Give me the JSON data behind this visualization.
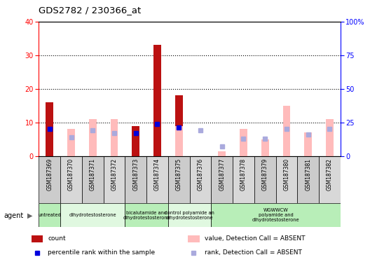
{
  "title": "GDS2782 / 230366_at",
  "samples": [
    "GSM187369",
    "GSM187370",
    "GSM187371",
    "GSM187372",
    "GSM187373",
    "GSM187374",
    "GSM187375",
    "GSM187376",
    "GSM187377",
    "GSM187378",
    "GSM187379",
    "GSM187380",
    "GSM187381",
    "GSM187382"
  ],
  "count_values": [
    16,
    null,
    null,
    null,
    9,
    33,
    18,
    null,
    null,
    null,
    null,
    null,
    null,
    null
  ],
  "absent_value_values": [
    null,
    8,
    11,
    11,
    null,
    null,
    9,
    null,
    1.5,
    8,
    5,
    15,
    7,
    11
  ],
  "percentile_rank_present": [
    20,
    null,
    null,
    null,
    17,
    24,
    21,
    null,
    null,
    null,
    null,
    null,
    null,
    null
  ],
  "percentile_rank_absent": [
    null,
    14,
    19,
    17,
    null,
    null,
    null,
    19,
    7,
    13,
    13,
    20,
    16,
    20
  ],
  "agent_groups": [
    {
      "label": "untreated",
      "start": 0,
      "end": 1,
      "color": "#b8eeb8"
    },
    {
      "label": "dihydrotestosterone",
      "start": 1,
      "end": 4,
      "color": "#e0f8e0"
    },
    {
      "label": "bicalutamide and\ndihydrotestosterone",
      "start": 4,
      "end": 6,
      "color": "#b8eeb8"
    },
    {
      "label": "control polyamide an\ndihydrotestosterone",
      "start": 6,
      "end": 8,
      "color": "#e0f8e0"
    },
    {
      "label": "WGWWCW\npolyamide and\ndihydrotestosterone",
      "start": 8,
      "end": 14,
      "color": "#b8eeb8"
    }
  ],
  "ylim_left": [
    0,
    40
  ],
  "ylim_right": [
    0,
    100
  ],
  "ylabel_left_ticks": [
    0,
    10,
    20,
    30,
    40
  ],
  "ylabel_right_ticks": [
    0,
    25,
    50,
    75,
    100
  ],
  "bar_width": 0.35,
  "count_color": "#bb1111",
  "absent_value_color": "#ffbbbb",
  "rank_present_color": "#0000dd",
  "rank_absent_color": "#aaaadd",
  "legend_items": [
    {
      "label": "count",
      "color": "#bb1111",
      "type": "rect"
    },
    {
      "label": "percentile rank within the sample",
      "color": "#0000dd",
      "type": "square"
    },
    {
      "label": "value, Detection Call = ABSENT",
      "color": "#ffbbbb",
      "type": "rect"
    },
    {
      "label": "rank, Detection Call = ABSENT",
      "color": "#aaaadd",
      "type": "square"
    }
  ],
  "sample_col_colors": [
    "#cccccc",
    "#d8d8d8",
    "#cccccc",
    "#d8d8d8",
    "#cccccc",
    "#d8d8d8",
    "#cccccc",
    "#d8d8d8",
    "#cccccc",
    "#d8d8d8",
    "#cccccc",
    "#d8d8d8",
    "#cccccc",
    "#d8d8d8"
  ]
}
